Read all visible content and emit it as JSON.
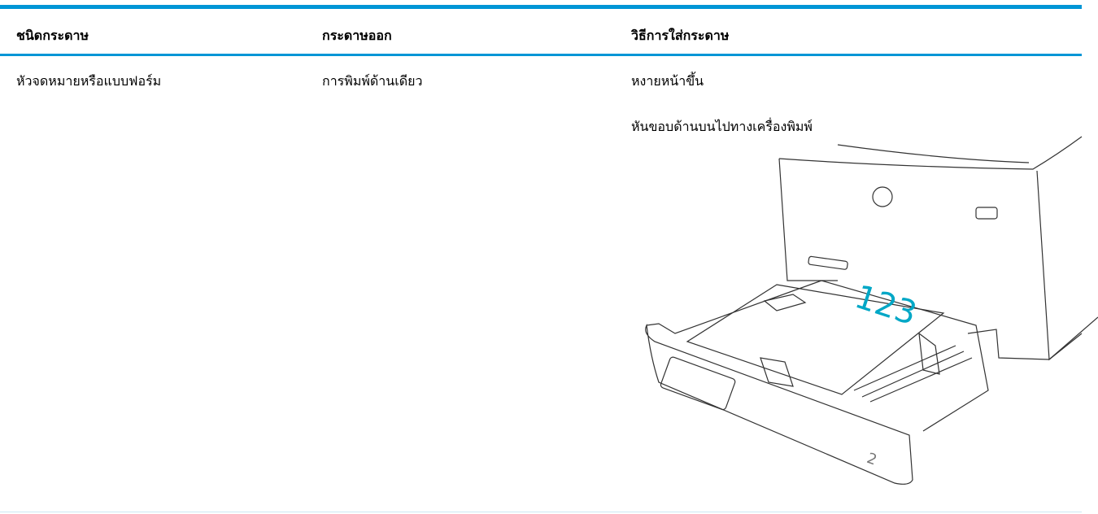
{
  "table": {
    "header": [
      "ชนิดกระดาษ",
      "กระดาษออก",
      "วิธีการใส่กระดาษ"
    ],
    "rows": [
      [
        "หัวจดหมายหรือแบบฟอร์ม",
        "การพิมพ์ด้านเดียว",
        [
          "หงายหน้าขึ้น",
          "หันขอบด้านบนไปทางเครื่องพิมพ์"
        ]
      ]
    ]
  },
  "illustration": {
    "paper_label": "123",
    "tray_label": "2"
  }
}
